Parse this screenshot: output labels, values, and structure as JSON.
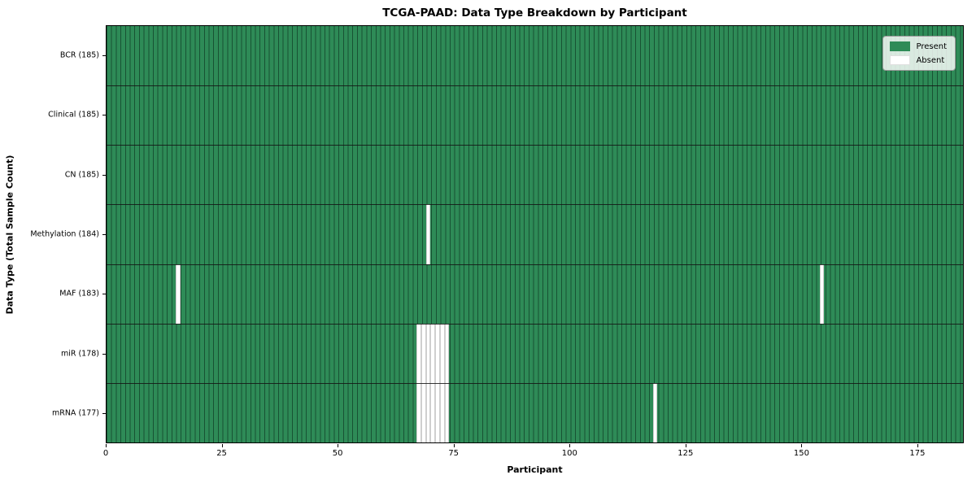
{
  "chart_data": {
    "type": "heatmap",
    "title": "TCGA-PAAD: Data Type Breakdown by Participant",
    "xlabel": "Participant",
    "ylabel": "Data Type (Total Sample Count)",
    "n_participants": 185,
    "x_ticks": [
      0,
      25,
      50,
      75,
      100,
      125,
      150,
      175
    ],
    "xlim": [
      0,
      185
    ],
    "grid": "per-cell vertical edges",
    "legend_position": "upper right",
    "legend": [
      {
        "label": "Present",
        "color": "#2e8b57"
      },
      {
        "label": "Absent",
        "color": "#ffffff"
      }
    ],
    "rows": [
      {
        "label": "BCR (185)",
        "total": 185,
        "absent_participants": []
      },
      {
        "label": "Clinical (185)",
        "total": 185,
        "absent_participants": []
      },
      {
        "label": "CN (185)",
        "total": 185,
        "absent_participants": []
      },
      {
        "label": "Methylation (184)",
        "total": 184,
        "absent_participants": [
          69
        ]
      },
      {
        "label": "MAF (183)",
        "total": 183,
        "absent_participants": [
          15,
          154
        ]
      },
      {
        "label": "miR (178)",
        "total": 178,
        "absent_participants": [
          67,
          68,
          69,
          70,
          71,
          72,
          73
        ]
      },
      {
        "label": "mRNA (177)",
        "total": 177,
        "absent_participants": [
          67,
          68,
          69,
          70,
          71,
          72,
          73,
          118
        ]
      }
    ],
    "colors": {
      "present": "#2e8b57",
      "absent": "#ffffff",
      "cell_edge": "#123d26",
      "row_separator": "#141414",
      "plot_border": "#000000",
      "background": "#ffffff"
    }
  }
}
